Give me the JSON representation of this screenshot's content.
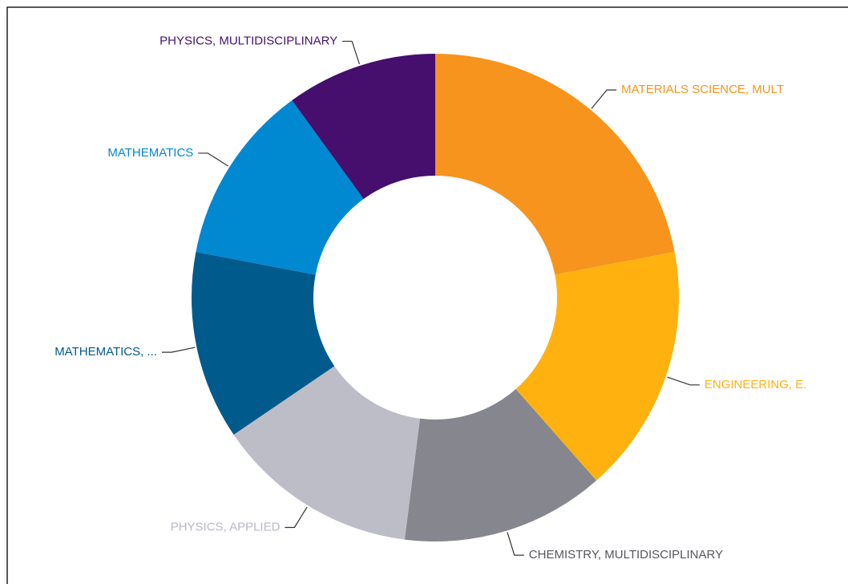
{
  "chart_data": {
    "type": "donut",
    "categories": [
      "MATERIALS SCIENCE, MULT",
      "ENGINEERING, E.",
      "CHEMISTRY, MULTIDISCIPLINARY",
      "PHYSICS, APPLIED",
      "MATHEMATICS, ...",
      "MATHEMATICS",
      "PHYSICS, MULTIDISCIPLINARY"
    ],
    "values": [
      22,
      16.5,
      13.5,
      13.5,
      12.5,
      12,
      10
    ],
    "colors": [
      "#f7941d",
      "#ffb20f",
      "#86868e",
      "#bcbdc6",
      "#005a8b",
      "#0088d1",
      "#460f6e"
    ],
    "label_colors": [
      "#f7941d",
      "#ffb20f",
      "#55555d",
      "#b8b8c8",
      "#005a8b",
      "#0088d1",
      "#460f6e"
    ]
  }
}
